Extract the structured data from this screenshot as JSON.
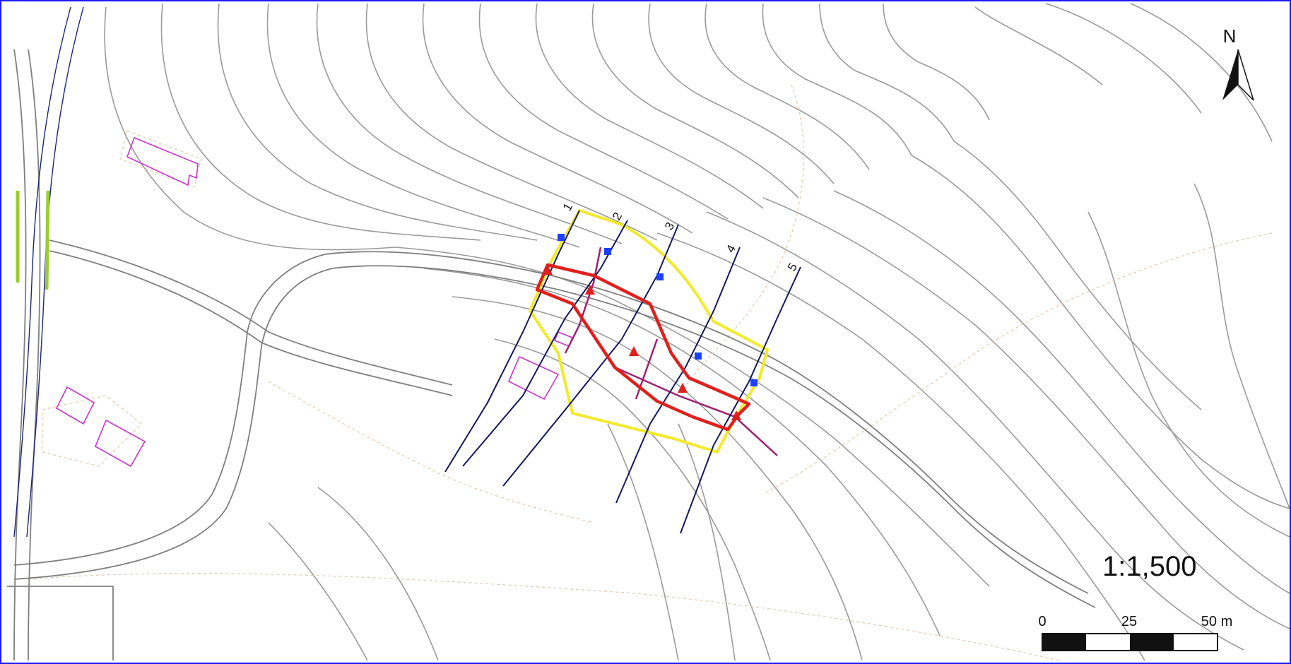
{
  "map": {
    "north_label": "N",
    "scale_ratio": "1:1,500",
    "scale_bar": {
      "ticks": [
        "0",
        "25",
        "50 m"
      ]
    },
    "survey_lines": [
      {
        "id": "1",
        "label": "1"
      },
      {
        "id": "2",
        "label": "2"
      },
      {
        "id": "3",
        "label": "3"
      },
      {
        "id": "4",
        "label": "4"
      },
      {
        "id": "5",
        "label": "5"
      }
    ],
    "colors": {
      "contour": "#9a9a9a",
      "road": "#7f7f7f",
      "survey_line": "#14185e",
      "boundary_yellow": "#f2ea2a",
      "slide_red": "#e0201c",
      "building": "#cc33cc",
      "marker_blue": "#1f3fff",
      "frame": "#1a1aff"
    }
  }
}
